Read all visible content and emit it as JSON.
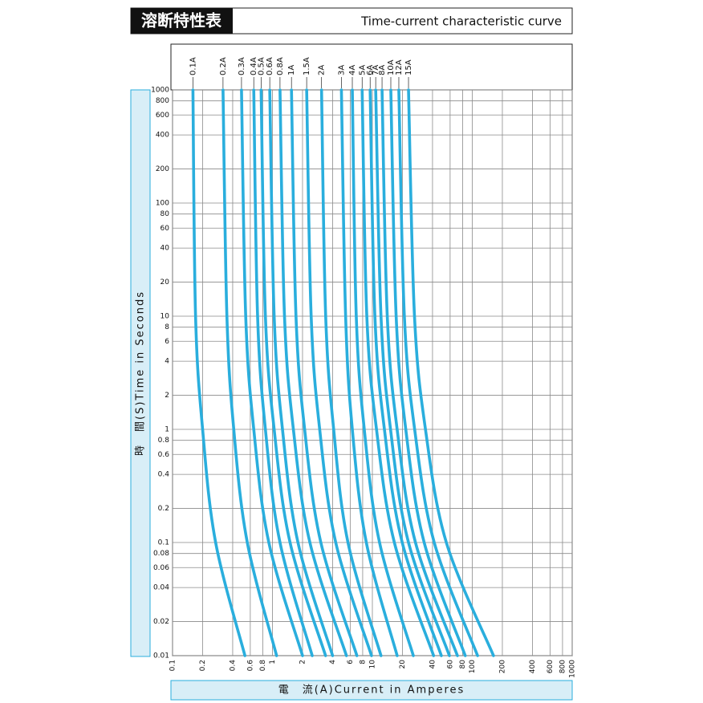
{
  "chart_data": {
    "type": "line",
    "title": "溶断特性表",
    "subtitle": "Time-current characteristic curve",
    "y_label": "時　間(S)Time in Seconds",
    "x_label": "電　流(A)Current in Amperes",
    "xscale": "log",
    "yscale": "log",
    "grid": true,
    "xlim": [
      0.1,
      1000
    ],
    "ylim": [
      0.01,
      1000
    ],
    "xticks": [
      0.1,
      0.2,
      0.4,
      0.6,
      0.8,
      1,
      2,
      4,
      6,
      8,
      10,
      20,
      40,
      60,
      80,
      100,
      200,
      400,
      600,
      800,
      1000
    ],
    "yticks": [
      0.01,
      0.02,
      0.04,
      0.06,
      0.08,
      0.1,
      0.2,
      0.4,
      0.6,
      0.8,
      1,
      2,
      4,
      6,
      8,
      10,
      20,
      40,
      60,
      80,
      100,
      200,
      400,
      600,
      800,
      1000
    ],
    "series": [
      {
        "name": "0.1A",
        "color": "#2aaedd",
        "x": [
          0.16,
          0.17,
          0.2,
          0.27,
          0.53
        ],
        "values": [
          1000,
          10,
          1,
          0.1,
          0.01
        ]
      },
      {
        "name": "0.2A",
        "color": "#2aaedd",
        "x": [
          0.32,
          0.35,
          0.41,
          0.56,
          1.1
        ],
        "values": [
          1000,
          10,
          1,
          0.1,
          0.01
        ]
      },
      {
        "name": "0.3A",
        "color": "#2aaedd",
        "x": [
          0.49,
          0.54,
          0.65,
          0.92,
          2.0
        ],
        "values": [
          1000,
          10,
          1,
          0.1,
          0.01
        ]
      },
      {
        "name": "0.4A",
        "color": "#2aaedd",
        "x": [
          0.65,
          0.71,
          0.85,
          1.19,
          2.5
        ],
        "values": [
          1000,
          10,
          1,
          0.1,
          0.01
        ]
      },
      {
        "name": "0.5A",
        "color": "#2aaedd",
        "x": [
          0.77,
          0.85,
          1.04,
          1.5,
          3.4
        ],
        "values": [
          1000,
          10,
          1,
          0.1,
          0.01
        ]
      },
      {
        "name": "0.6A",
        "color": "#2aaedd",
        "x": [
          0.94,
          1.04,
          1.26,
          1.8,
          4.0
        ],
        "values": [
          1000,
          10,
          1,
          0.1,
          0.01
        ]
      },
      {
        "name": "0.8A",
        "color": "#2aaedd",
        "x": [
          1.19,
          1.32,
          1.62,
          2.37,
          5.5
        ],
        "values": [
          1000,
          10,
          1,
          0.1,
          0.01
        ]
      },
      {
        "name": "1A",
        "color": "#2aaedd",
        "x": [
          1.55,
          1.72,
          2.1,
          3.05,
          7.0
        ],
        "values": [
          1000,
          10,
          1,
          0.1,
          0.01
        ]
      },
      {
        "name": "1.5A",
        "color": "#2aaedd",
        "x": [
          2.2,
          2.44,
          2.97,
          4.3,
          9.8
        ],
        "values": [
          1000,
          10,
          1,
          0.1,
          0.01
        ]
      },
      {
        "name": "2A",
        "color": "#2aaedd",
        "x": [
          3.1,
          3.41,
          4.1,
          5.7,
          12.2
        ],
        "values": [
          1000,
          10,
          1,
          0.1,
          0.01
        ]
      },
      {
        "name": "3A",
        "color": "#2aaedd",
        "x": [
          4.9,
          5.4,
          6.3,
          8.7,
          17.7
        ],
        "values": [
          1000,
          10,
          1,
          0.1,
          0.01
        ]
      },
      {
        "name": "4A",
        "color": "#2aaedd",
        "x": [
          6.3,
          6.9,
          8.3,
          11.8,
          25.7
        ],
        "values": [
          1000,
          10,
          1,
          0.1,
          0.01
        ]
      },
      {
        "name": "5A",
        "color": "#2aaedd",
        "x": [
          7.9,
          8.8,
          11,
          16.6,
          41
        ],
        "values": [
          1000,
          10,
          1,
          0.1,
          0.01
        ]
      },
      {
        "name": "6A",
        "color": "#2aaedd",
        "x": [
          9.5,
          10.6,
          13.2,
          19.9,
          49
        ],
        "values": [
          1000,
          10,
          1,
          0.1,
          0.01
        ]
      },
      {
        "name": "7A",
        "color": "#2aaedd",
        "x": [
          10.8,
          12.2,
          15.2,
          23,
          59
        ],
        "values": [
          1000,
          10,
          1,
          0.1,
          0.01
        ]
      },
      {
        "name": "8A",
        "color": "#2aaedd",
        "x": [
          12.5,
          14.1,
          17.7,
          27,
          71
        ],
        "values": [
          1000,
          10,
          1,
          0.1,
          0.01
        ]
      },
      {
        "name": "10A",
        "color": "#2aaedd",
        "x": [
          15.3,
          17.3,
          21.6,
          33,
          85
        ],
        "values": [
          1000,
          10,
          1,
          0.1,
          0.01
        ]
      },
      {
        "name": "12A",
        "color": "#2aaedd",
        "x": [
          18.4,
          20.9,
          26.5,
          41.6,
          113
        ],
        "values": [
          1000,
          10,
          1,
          0.1,
          0.01
        ]
      },
      {
        "name": "15A",
        "color": "#2aaedd",
        "x": [
          23,
          26.4,
          34,
          55,
          163
        ],
        "values": [
          1000,
          10,
          1,
          0.1,
          0.01
        ]
      }
    ]
  }
}
